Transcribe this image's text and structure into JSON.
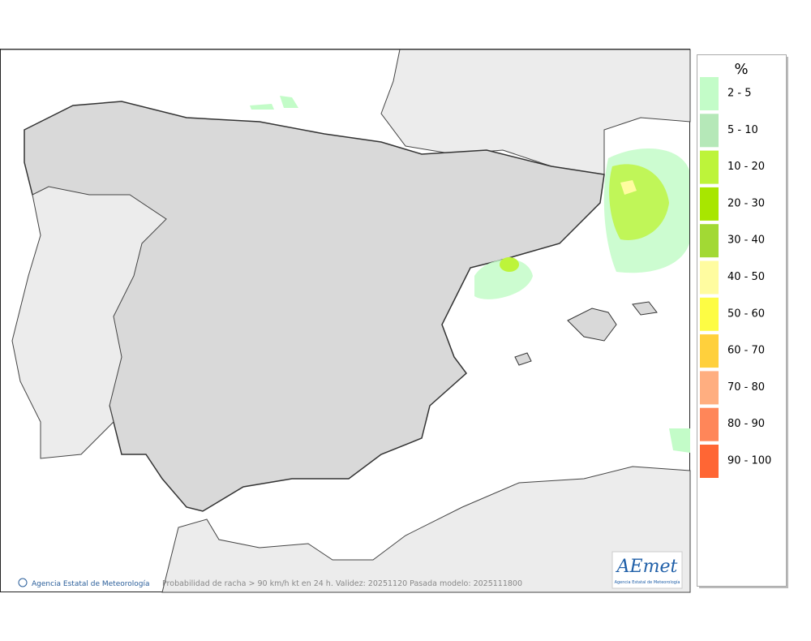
{
  "map": {
    "caption": "Probabilidad de racha > 90 km/h kt en 24 h. Validez: 20251120 Pasada modelo: 2025111800",
    "copyright": "Agencia Estatal de Meteorología",
    "logo": {
      "text": "AEmet",
      "subtitle": "Agencia Estatal de Meteorología"
    }
  },
  "legend": {
    "title": "%",
    "items": [
      {
        "label": "2 - 5",
        "color": "#c3fcc8"
      },
      {
        "label": "5 - 10",
        "color": "#b5e8b8"
      },
      {
        "label": "10 - 20",
        "color": "#bdf43a"
      },
      {
        "label": "20 - 30",
        "color": "#a8e600"
      },
      {
        "label": "30 - 40",
        "color": "#a2d934"
      },
      {
        "label": "40 - 50",
        "color": "#fffca0"
      },
      {
        "label": "50 - 60",
        "color": "#fdfc44"
      },
      {
        "label": "60 - 70",
        "color": "#ffd03c"
      },
      {
        "label": "70 - 80",
        "color": "#ffae80"
      },
      {
        "label": "80 - 90",
        "color": "#ff8659"
      },
      {
        "label": "90 - 100",
        "color": "#ff6634"
      }
    ]
  }
}
